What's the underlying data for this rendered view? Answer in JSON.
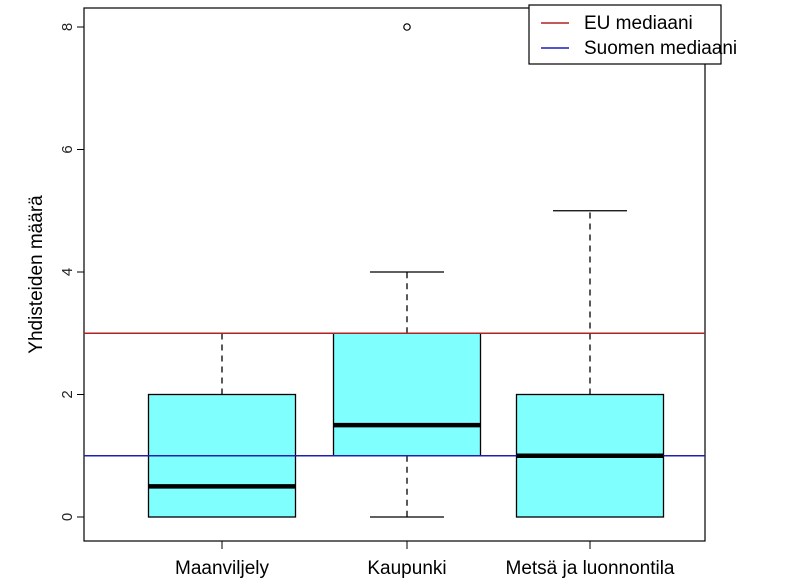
{
  "chart_data": {
    "type": "boxplot",
    "ylabel": "Yhdisteiden määrä",
    "xlabel": "",
    "ylim": [
      0,
      8
    ],
    "y_ticks": [
      0,
      2,
      4,
      6,
      8
    ],
    "categories": [
      "Maanviljely",
      "Kaupunki",
      "Metsä ja luonnontila"
    ],
    "box_color": "#80ffff",
    "boxes": [
      {
        "category": "Maanviljely",
        "whisker_low": 0,
        "q1": 0,
        "median": 0.5,
        "q3": 2,
        "whisker_high": 3,
        "outliers": []
      },
      {
        "category": "Kaupunki",
        "whisker_low": 0,
        "q1": 1,
        "median": 1.5,
        "q3": 3,
        "whisker_high": 4,
        "outliers": [
          8
        ]
      },
      {
        "category": "Metsä ja luonnontila",
        "whisker_low": 0,
        "q1": 0,
        "median": 1,
        "q3": 2,
        "whisker_high": 5,
        "outliers": []
      }
    ],
    "reference_lines": [
      {
        "name": "EU mediaani",
        "value": 3,
        "color": "#b22222"
      },
      {
        "name": "Suomen mediaani",
        "value": 1,
        "color": "#1f1fb8"
      }
    ],
    "legend_position": "top-right",
    "grid": false
  }
}
